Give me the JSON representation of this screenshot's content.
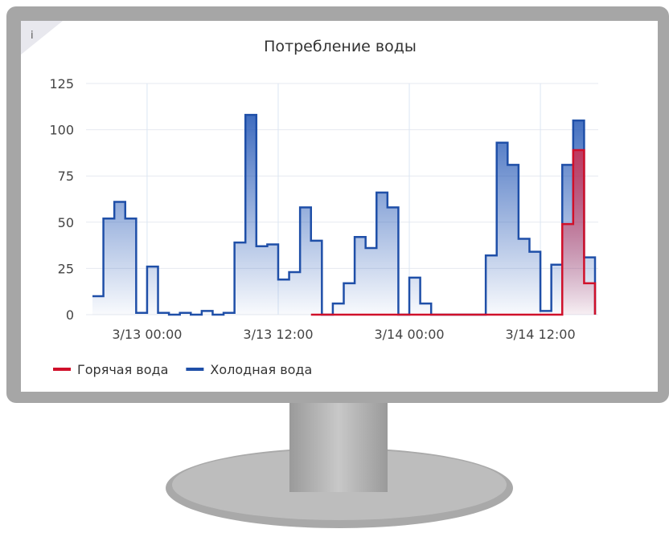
{
  "chart_data": {
    "type": "line",
    "step": true,
    "title": "Потребление воды",
    "categories": [
      null,
      null,
      null,
      null,
      null,
      "3/13 00:00",
      null,
      null,
      null,
      null,
      null,
      null,
      null,
      null,
      null,
      null,
      null,
      "3/13 12:00",
      null,
      null,
      null,
      null,
      null,
      null,
      null,
      null,
      null,
      null,
      null,
      "3/14 00:00",
      null,
      null,
      null,
      null,
      null,
      null,
      null,
      null,
      null,
      null,
      null,
      "3/14 12:00",
      null,
      null,
      null,
      null
    ],
    "series": [
      {
        "name": "Горячая вода",
        "color": "#d0102a",
        "values": [
          null,
          null,
          null,
          null,
          null,
          null,
          null,
          null,
          null,
          null,
          null,
          null,
          null,
          null,
          null,
          null,
          null,
          null,
          null,
          null,
          0,
          0,
          0,
          0,
          0,
          0,
          0,
          0,
          0,
          0,
          0,
          0,
          0,
          0,
          0,
          0,
          0,
          0,
          0,
          0,
          0,
          0,
          0,
          49,
          89,
          17
        ]
      },
      {
        "name": "Холодная вода",
        "color": "#1f4fa8",
        "values": [
          10,
          52,
          61,
          52,
          1,
          26,
          1,
          0,
          1,
          0,
          2,
          0,
          1,
          39,
          108,
          37,
          38,
          19,
          23,
          58,
          40,
          0,
          6,
          17,
          42,
          36,
          66,
          58,
          0,
          20,
          6,
          0,
          0,
          0,
          0,
          0,
          32,
          93,
          81,
          41,
          34,
          2,
          27,
          81,
          105,
          31
        ]
      }
    ],
    "ylim": [
      0,
      125
    ],
    "yticks": [
      0,
      25,
      50,
      75,
      100,
      125
    ],
    "grid": true,
    "legend": "bottom-left"
  }
}
